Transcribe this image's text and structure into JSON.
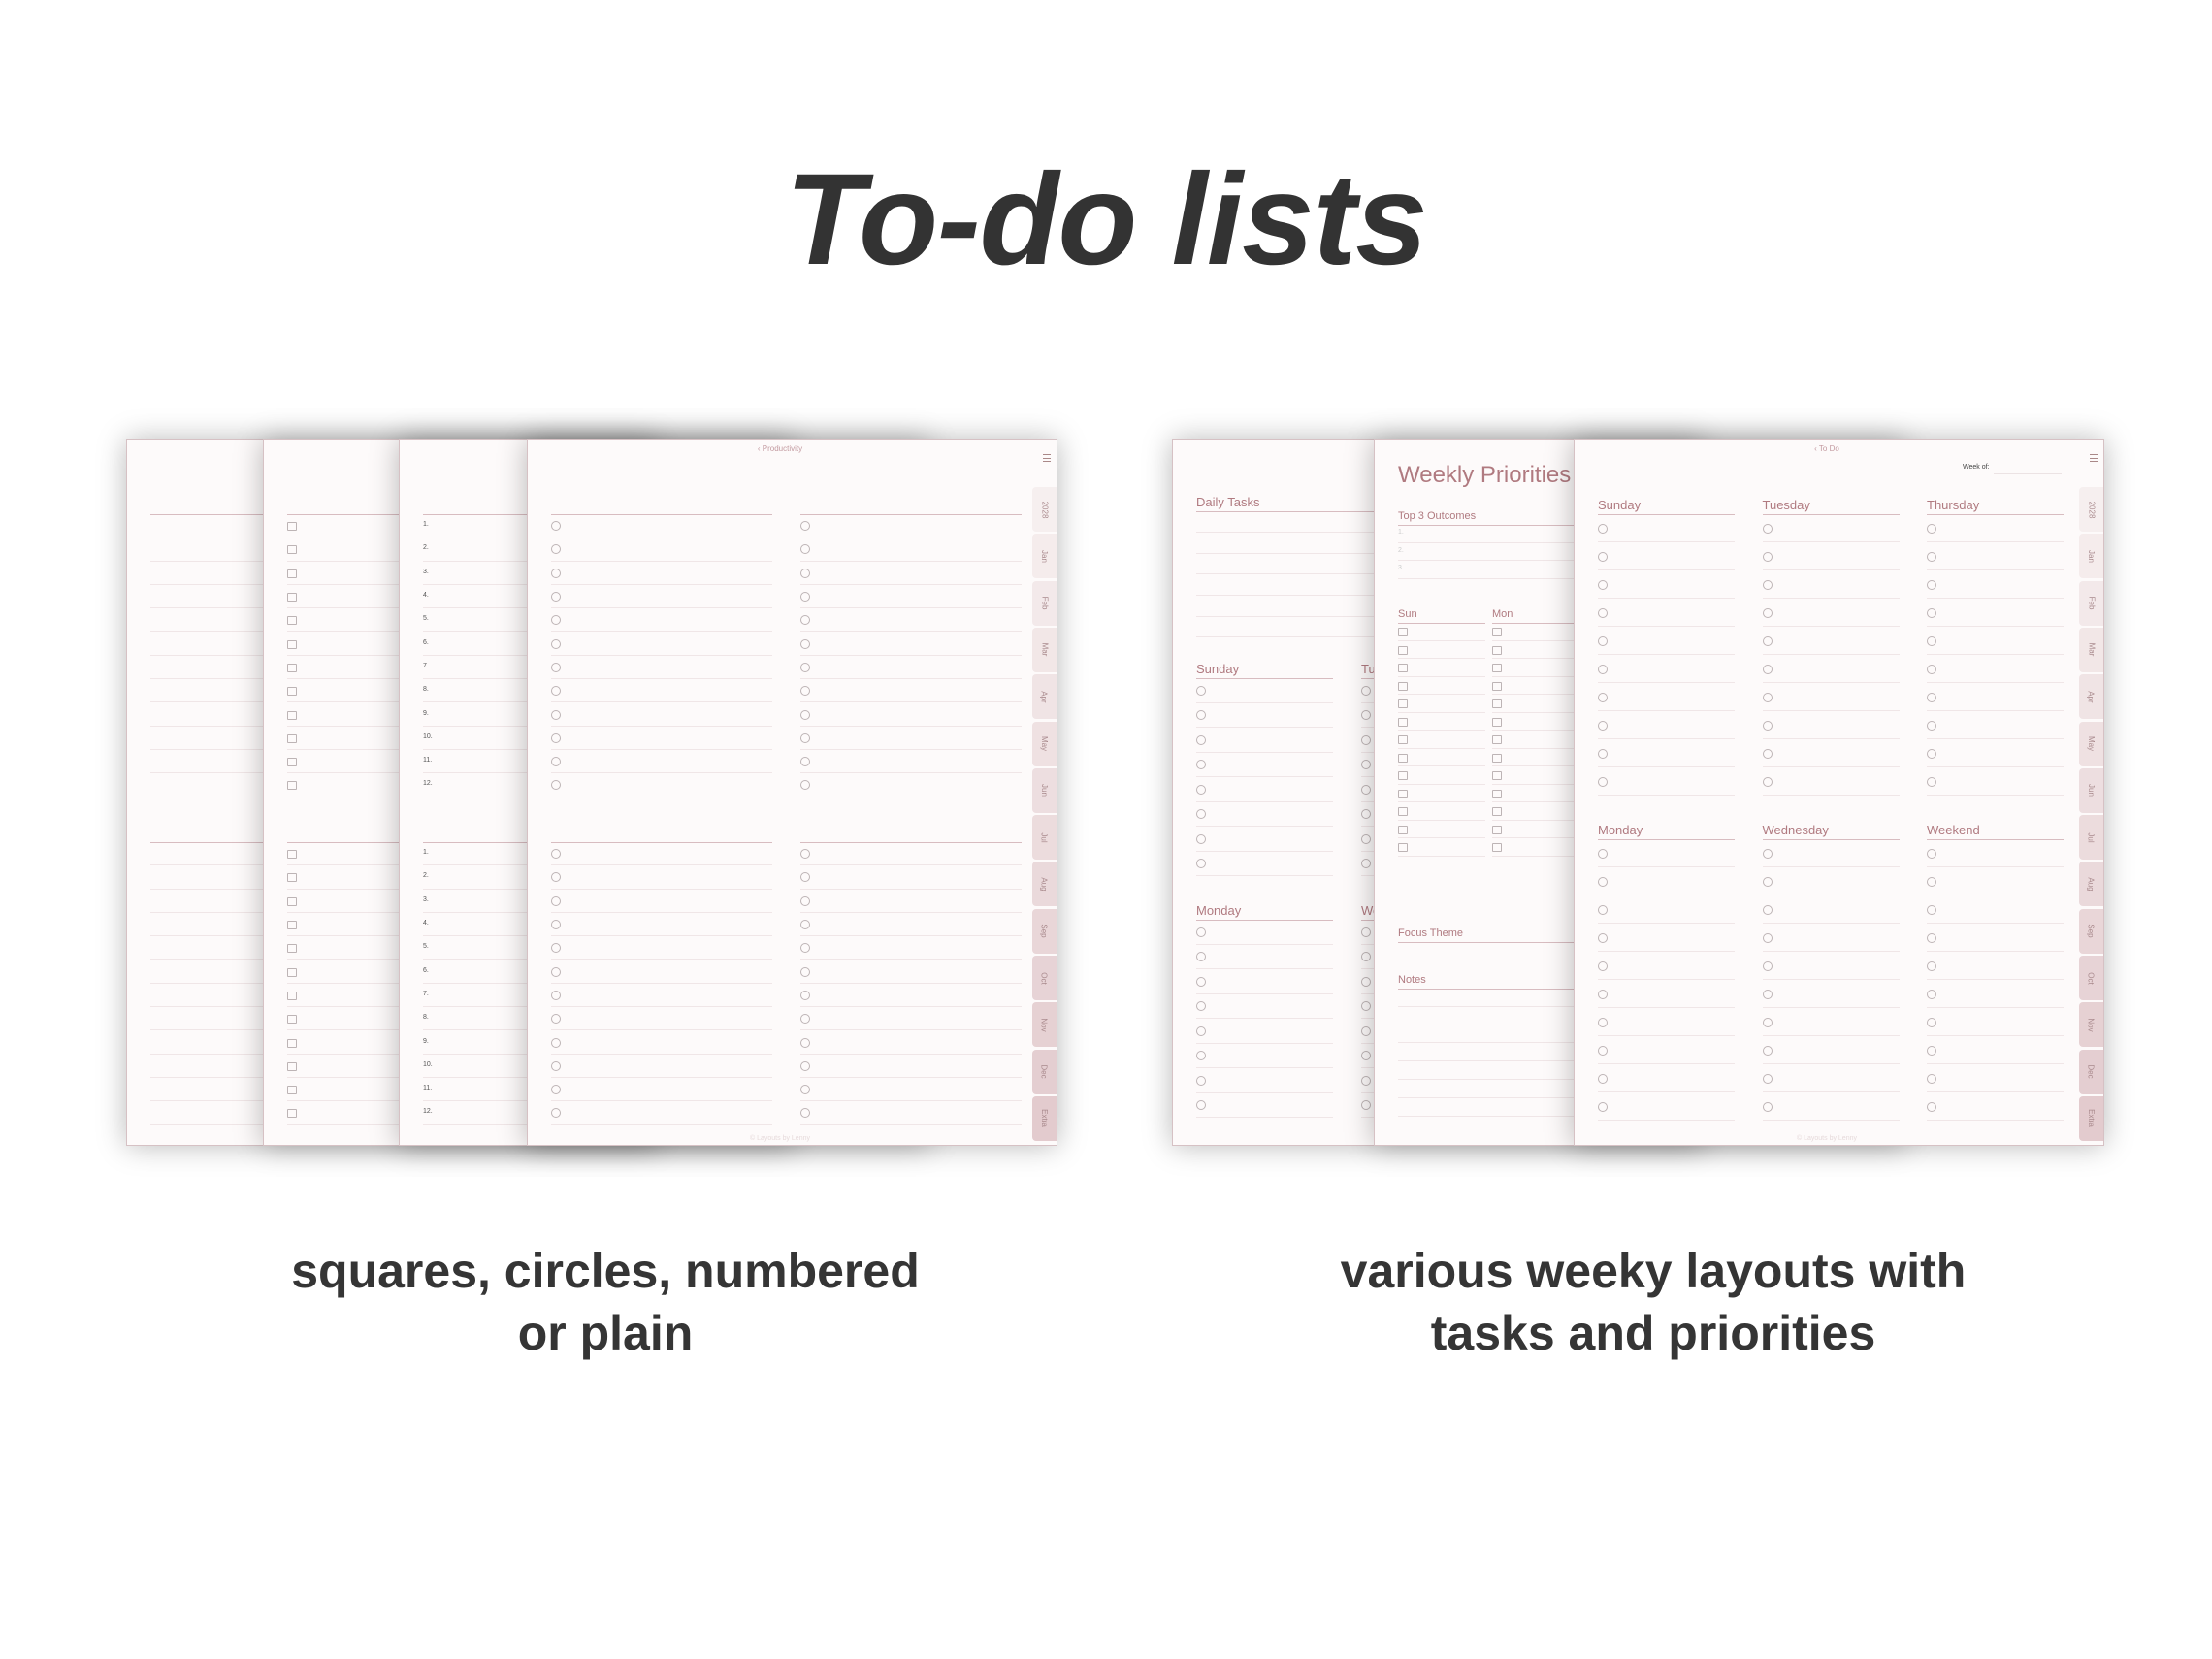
{
  "title": "To-do lists",
  "captions": {
    "left": [
      "squares, circles, numbered",
      "or plain"
    ],
    "right": [
      "various weeky layouts with",
      "tasks and priorities"
    ]
  },
  "colors": {
    "accent": "#b07a80",
    "page_bg": "#fdfafa",
    "text": "#333333",
    "tab_light": "#f6efef",
    "tab_dark": "#e3cbce"
  },
  "tabs": [
    "2028",
    "Jan",
    "Feb",
    "Mar",
    "Apr",
    "May",
    "Jun",
    "Jul",
    "Aug",
    "Sep",
    "Oct",
    "Nov",
    "Dec",
    "Extra"
  ],
  "menu_icon": "hamburger-menu-icon",
  "footer": "© Layouts by Lenny",
  "left_group": {
    "breadcrumb": "‹ Productivity",
    "pages": [
      {
        "style": "plain"
      },
      {
        "style": "squares"
      },
      {
        "style": "numbered"
      },
      {
        "style": "circles"
      }
    ],
    "numbers": [
      "1.",
      "2.",
      "3.",
      "4.",
      "5.",
      "6.",
      "7.",
      "8.",
      "9.",
      "10.",
      "11.",
      "12."
    ]
  },
  "right_group": {
    "daily_page": {
      "daily_tasks": "Daily Tasks",
      "sections": [
        [
          "Sunday",
          "Tuesday"
        ],
        [
          "Monday",
          "Wednesday"
        ]
      ]
    },
    "priorities_page": {
      "title": "Weekly Priorities",
      "top3": "Top 3 Outcomes",
      "top3_numbers": [
        "1.",
        "2.",
        "3."
      ],
      "days": [
        "Sun",
        "Mon"
      ],
      "focus": "Focus Theme",
      "notes": "Notes"
    },
    "weekly_page": {
      "breadcrumb": "‹ To Do",
      "week_of": "Week of:",
      "sections": [
        [
          "Sunday",
          "Tuesday",
          "Thursday"
        ],
        [
          "Monday",
          "Wednesday",
          "Weekend"
        ]
      ]
    }
  }
}
